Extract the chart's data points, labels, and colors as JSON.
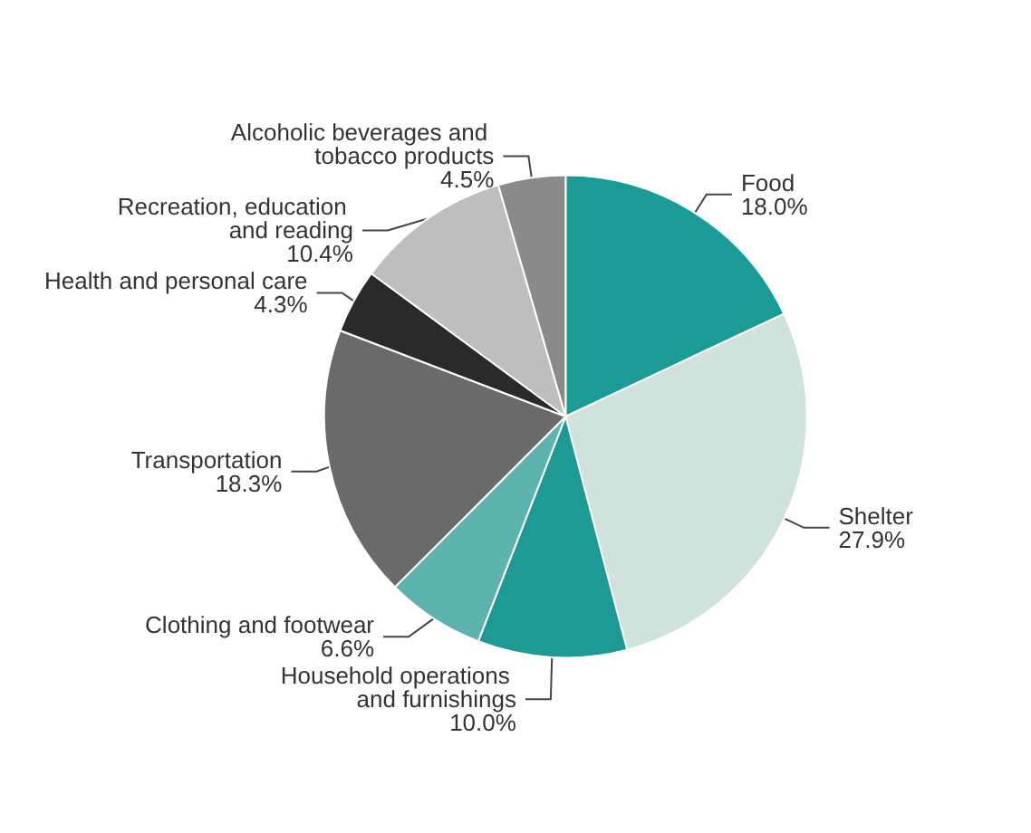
{
  "chart_data": {
    "type": "pie",
    "categories": [
      "Food",
      "Shelter",
      "Household operations and furnishings",
      "Clothing and footwear",
      "Transportation",
      "Health and personal care",
      "Recreation, education and reading",
      "Alcoholic beverages and tobacco products"
    ],
    "values": [
      18.0,
      27.9,
      10.0,
      6.6,
      18.3,
      4.3,
      10.4,
      4.5
    ],
    "value_labels": [
      "18.0%",
      "27.9%",
      "10.0%",
      "6.6%",
      "18.3%",
      "4.3%",
      "10.4%",
      "4.5%"
    ],
    "colors": [
      "#1b9b95",
      "#cfe3dc",
      "#1e9a94",
      "#5db3ad",
      "#6a6a6a",
      "#2a2a2a",
      "#bebebe",
      "#8a8a8a"
    ]
  }
}
